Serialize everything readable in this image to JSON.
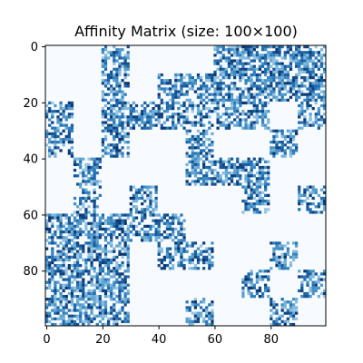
{
  "chart_data": {
    "type": "heatmap",
    "title": "Affinity Matrix (size: 100×100)",
    "xlabel": "",
    "ylabel": "",
    "size": 100,
    "xlim": [
      0,
      99
    ],
    "ylim": [
      0,
      99
    ],
    "x_ticks": [
      "0",
      "20",
      "40",
      "60",
      "80"
    ],
    "y_ticks": [
      "0",
      "20",
      "40",
      "60",
      "80"
    ],
    "colormap": "Blues",
    "value_range": [
      0,
      1
    ],
    "grid": false,
    "pattern_note": "Block-structured affinity matrix: dense dotted blocks on a near-white background",
    "blocks": [
      {
        "rows": [
          0,
          30
        ],
        "cols": [
          20,
          30
        ],
        "density": 0.55
      },
      {
        "rows": [
          0,
          20
        ],
        "cols": [
          60,
          100
        ],
        "density": 0.6
      },
      {
        "rows": [
          10,
          30
        ],
        "cols": [
          40,
          60
        ],
        "density": 0.5
      },
      {
        "rows": [
          20,
          40
        ],
        "cols": [
          0,
          10
        ],
        "density": 0.5
      },
      {
        "rows": [
          20,
          30
        ],
        "cols": [
          30,
          40
        ],
        "density": 0.5
      },
      {
        "rows": [
          20,
          30
        ],
        "cols": [
          60,
          80
        ],
        "density": 0.5
      },
      {
        "rows": [
          20,
          30
        ],
        "cols": [
          90,
          100
        ],
        "density": 0.5
      },
      {
        "rows": [
          30,
          40
        ],
        "cols": [
          20,
          30
        ],
        "density": 0.5
      },
      {
        "rows": [
          30,
          40
        ],
        "cols": [
          50,
          60
        ],
        "density": 0.5
      },
      {
        "rows": [
          30,
          40
        ],
        "cols": [
          80,
          90
        ],
        "density": 0.5
      },
      {
        "rows": [
          40,
          50
        ],
        "cols": [
          10,
          20
        ],
        "density": 0.55
      },
      {
        "rows": [
          40,
          50
        ],
        "cols": [
          50,
          80
        ],
        "density": 0.55
      },
      {
        "rows": [
          50,
          60
        ],
        "cols": [
          10,
          20
        ],
        "density": 0.35
      },
      {
        "rows": [
          50,
          70
        ],
        "cols": [
          30,
          40
        ],
        "density": 0.5
      },
      {
        "rows": [
          50,
          60
        ],
        "cols": [
          70,
          80
        ],
        "density": 0.5
      },
      {
        "rows": [
          50,
          60
        ],
        "cols": [
          90,
          100
        ],
        "density": 0.5
      },
      {
        "rows": [
          60,
          100
        ],
        "cols": [
          0,
          30
        ],
        "density": 0.55
      },
      {
        "rows": [
          60,
          70
        ],
        "cols": [
          40,
          50
        ],
        "density": 0.45
      },
      {
        "rows": [
          70,
          80
        ],
        "cols": [
          40,
          60
        ],
        "density": 0.5
      },
      {
        "rows": [
          70,
          80
        ],
        "cols": [
          80,
          90
        ],
        "density": 0.5
      },
      {
        "rows": [
          80,
          90
        ],
        "cols": [
          70,
          80
        ],
        "density": 0.5
      },
      {
        "rows": [
          80,
          90
        ],
        "cols": [
          90,
          100
        ],
        "density": 0.5
      },
      {
        "rows": [
          90,
          100
        ],
        "cols": [
          50,
          60
        ],
        "density": 0.5
      },
      {
        "rows": [
          90,
          100
        ],
        "cols": [
          80,
          90
        ],
        "density": 0.5
      }
    ]
  }
}
